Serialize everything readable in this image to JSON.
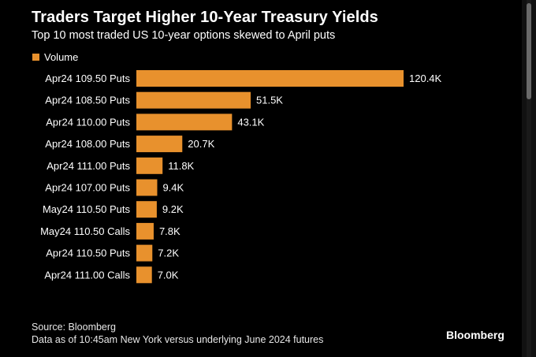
{
  "header": {
    "title": "Traders Target Higher 10-Year Treasury Yields",
    "subtitle": "Top 10 most traded US 10-year options skewed to April puts"
  },
  "legend": {
    "label": "Volume"
  },
  "colors": {
    "bar": "#E8912D",
    "background": "#000000",
    "text": "#ffffff"
  },
  "chart_data": {
    "type": "bar",
    "orientation": "horizontal",
    "title": "Traders Target Higher 10-Year Treasury Yields",
    "subtitle": "Top 10 most traded US 10-year options skewed to April puts",
    "categories": [
      "Apr24 109.50 Puts",
      "Apr24 108.50 Puts",
      "Apr24 110.00 Puts",
      "Apr24 108.00 Puts",
      "Apr24 111.00 Puts",
      "Apr24 107.00 Puts",
      "May24 110.50 Puts",
      "May24 110.50 Calls",
      "Apr24 110.50 Puts",
      "Apr24 111.00 Calls"
    ],
    "series": [
      {
        "name": "Volume",
        "values": [
          120400,
          51500,
          43100,
          20700,
          11800,
          9400,
          9200,
          7800,
          7200,
          7000
        ],
        "labels": [
          "120.4K",
          "51.5K",
          "43.1K",
          "20.7K",
          "11.8K",
          "9.4K",
          "9.2K",
          "7.8K",
          "7.2K",
          "7.0K"
        ]
      }
    ],
    "xlim": [
      0,
      120400
    ],
    "grid": false,
    "legend_position": "top-left"
  },
  "footer": {
    "source": "Source: Bloomberg",
    "note": "Data as of 10:45am New York versus underlying June 2024 futures",
    "brand": "Bloomberg"
  }
}
